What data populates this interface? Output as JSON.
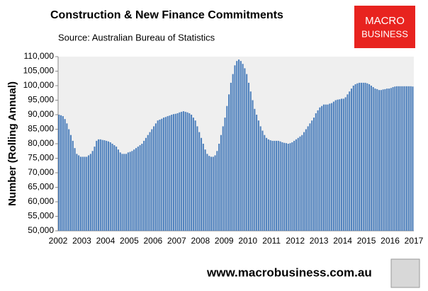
{
  "chart_data": {
    "type": "bar",
    "title": "Construction & New Finance Commitments",
    "subtitle": "Source: Australian  Bureau of Statistics",
    "ylabel": "Number (Rolling Annual)",
    "logo": [
      "MACRO",
      "BUSINESS"
    ],
    "footer": "www.macrobusiness.com.au",
    "color": "#4f81bd",
    "grid": false,
    "ylim": [
      50000,
      110000
    ],
    "yticks": [
      {
        "value": 50000,
        "label": "50,000"
      },
      {
        "value": 55000,
        "label": "55,000"
      },
      {
        "value": 60000,
        "label": "60,000"
      },
      {
        "value": 65000,
        "label": "65,000"
      },
      {
        "value": 70000,
        "label": "70,000"
      },
      {
        "value": 75000,
        "label": "75,000"
      },
      {
        "value": 80000,
        "label": "80,000"
      },
      {
        "value": 85000,
        "label": "85,000"
      },
      {
        "value": 90000,
        "label": "90,000"
      },
      {
        "value": 95000,
        "label": "95,000"
      },
      {
        "value": 100000,
        "label": "100,000"
      },
      {
        "value": 105000,
        "label": "105,000"
      },
      {
        "value": 110000,
        "label": "110,000"
      }
    ],
    "categories": [
      "2002",
      null,
      null,
      null,
      null,
      null,
      null,
      null,
      null,
      null,
      null,
      null,
      "2003",
      null,
      null,
      null,
      null,
      null,
      null,
      null,
      null,
      null,
      null,
      null,
      "2004",
      null,
      null,
      null,
      null,
      null,
      null,
      null,
      null,
      null,
      null,
      null,
      "2005",
      null,
      null,
      null,
      null,
      null,
      null,
      null,
      null,
      null,
      null,
      null,
      "2006",
      null,
      null,
      null,
      null,
      null,
      null,
      null,
      null,
      null,
      null,
      null,
      "2007",
      null,
      null,
      null,
      null,
      null,
      null,
      null,
      null,
      null,
      null,
      null,
      "2008",
      null,
      null,
      null,
      null,
      null,
      null,
      null,
      null,
      null,
      null,
      null,
      "2009",
      null,
      null,
      null,
      null,
      null,
      null,
      null,
      null,
      null,
      null,
      null,
      "2010",
      null,
      null,
      null,
      null,
      null,
      null,
      null,
      null,
      null,
      null,
      null,
      "2011",
      null,
      null,
      null,
      null,
      null,
      null,
      null,
      null,
      null,
      null,
      null,
      "2012",
      null,
      null,
      null,
      null,
      null,
      null,
      null,
      null,
      null,
      null,
      null,
      "2013",
      null,
      null,
      null,
      null,
      null,
      null,
      null,
      null,
      null,
      null,
      null,
      "2014",
      null,
      null,
      null,
      null,
      null,
      null,
      null,
      null,
      null,
      null,
      null,
      "2015",
      null,
      null,
      null,
      null,
      null,
      null,
      null,
      null,
      null,
      null,
      null,
      "2016",
      null,
      null,
      null,
      null,
      null,
      null,
      null,
      null,
      null,
      null,
      null,
      "2017"
    ],
    "values": [
      90000,
      89800,
      89500,
      88500,
      87000,
      85000,
      83000,
      81000,
      78500,
      76500,
      76000,
      75500,
      75500,
      75500,
      75500,
      76000,
      76500,
      77500,
      79000,
      81000,
      81500,
      81500,
      81300,
      81200,
      81000,
      80800,
      80500,
      80000,
      79500,
      79000,
      78000,
      77000,
      76500,
      76500,
      76500,
      77000,
      77200,
      77500,
      78000,
      78500,
      79000,
      79500,
      80000,
      81000,
      82000,
      83000,
      84000,
      85000,
      86000,
      87000,
      88000,
      88300,
      88600,
      89000,
      89200,
      89500,
      89700,
      90000,
      90200,
      90300,
      90500,
      90800,
      91000,
      91200,
      91000,
      90800,
      90500,
      90000,
      89000,
      88000,
      86000,
      84000,
      82000,
      80000,
      78000,
      76500,
      75800,
      75500,
      75500,
      76000,
      77500,
      80000,
      83000,
      86000,
      89000,
      93000,
      97000,
      101000,
      104000,
      107000,
      108500,
      109000,
      108500,
      107500,
      106000,
      104000,
      101000,
      98000,
      95000,
      92000,
      90000,
      88000,
      86000,
      84500,
      83000,
      82000,
      81500,
      81200,
      81000,
      81000,
      81000,
      81000,
      80800,
      80500,
      80300,
      80200,
      80000,
      80200,
      80500,
      81000,
      81500,
      82000,
      82500,
      83000,
      84000,
      85000,
      86000,
      87000,
      88000,
      89000,
      90500,
      91500,
      92500,
      93000,
      93500,
      93500,
      93500,
      93800,
      94000,
      94500,
      95000,
      95200,
      95300,
      95500,
      95500,
      96000,
      97000,
      98000,
      99000,
      100000,
      100500,
      100800,
      101000,
      101000,
      101000,
      101000,
      100800,
      100500,
      100000,
      99500,
      99000,
      98800,
      98500,
      98500,
      98700,
      98800,
      99000,
      99000,
      99200,
      99500,
      99700,
      99800,
      99800,
      99800,
      99800,
      99800,
      99800,
      99800,
      99800,
      99700,
      null
    ]
  }
}
